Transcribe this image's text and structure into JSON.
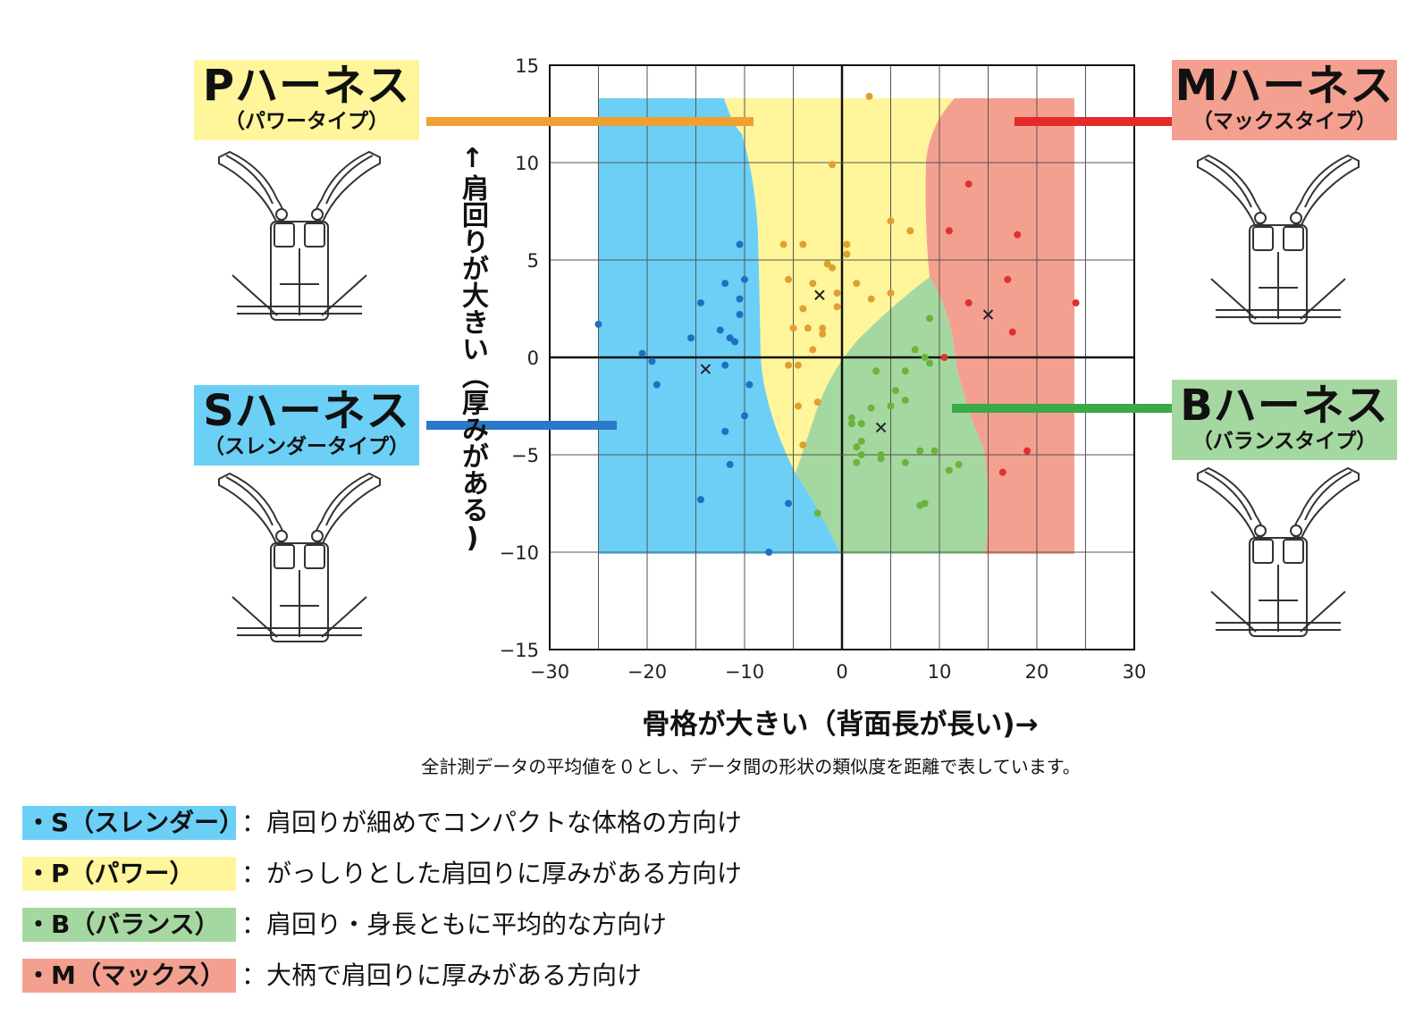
{
  "chart_data": {
    "type": "scatter",
    "xlabel": "骨格が大きい（背面長が長い)→",
    "ylabel": "↑肩回りが大きい（厚みがある)",
    "note": "全計測データの平均値を０とし、データ間の形状の類似度を距離で表しています。",
    "xlim": [
      -30,
      30
    ],
    "ylim": [
      -15,
      15
    ],
    "x_ticks": [
      "−30",
      "−20",
      "−10",
      "0",
      "10",
      "20",
      "30"
    ],
    "y_ticks": [
      "15",
      "10",
      "5",
      "0",
      "−5",
      "−10",
      "−15"
    ],
    "grid": true,
    "series": [
      {
        "name": "S",
        "color": "#1f6fc2",
        "points": [
          [
            -25,
            1.7
          ],
          [
            -20.5,
            0.2
          ],
          [
            -19.5,
            -0.2
          ],
          [
            -19,
            -1.4
          ],
          [
            -15.5,
            1
          ],
          [
            -14.5,
            2.8
          ],
          [
            -12.5,
            1.4
          ],
          [
            -12,
            -3.8
          ],
          [
            -12,
            3.8
          ],
          [
            -11.5,
            1
          ],
          [
            -11,
            0.8
          ],
          [
            -10.5,
            5.8
          ],
          [
            -10.5,
            3
          ],
          [
            -10.5,
            2.2
          ],
          [
            -10,
            4
          ],
          [
            -10,
            -3
          ],
          [
            -9.5,
            -1.4
          ],
          [
            -12,
            -0.4
          ],
          [
            -11.5,
            -5.5
          ],
          [
            -14.5,
            -7.3
          ],
          [
            -5.5,
            -7.5
          ],
          [
            -7.5,
            -10
          ]
        ]
      },
      {
        "name": "P",
        "color": "#e0a030",
        "points": [
          [
            2.8,
            13.4
          ],
          [
            -1,
            9.9
          ],
          [
            -6,
            5.8
          ],
          [
            -4,
            5.8
          ],
          [
            0.5,
            5.8
          ],
          [
            0.5,
            5.3
          ],
          [
            -1.5,
            4.8
          ],
          [
            -1,
            4.6
          ],
          [
            -5.5,
            4
          ],
          [
            -3,
            3.8
          ],
          [
            -0.5,
            3.3
          ],
          [
            -0.5,
            2.6
          ],
          [
            1.5,
            3.8
          ],
          [
            -4,
            2.5
          ],
          [
            -5,
            1.5
          ],
          [
            -3.5,
            1.5
          ],
          [
            -2,
            1.5
          ],
          [
            -2,
            1.2
          ],
          [
            -3,
            0.4
          ],
          [
            -5.5,
            -0.4
          ],
          [
            -4.5,
            -0.4
          ],
          [
            -4.5,
            -2.5
          ],
          [
            -2.5,
            -2.3
          ],
          [
            -4,
            -4.5
          ],
          [
            3,
            3
          ],
          [
            5,
            3.3
          ],
          [
            5,
            7
          ],
          [
            7,
            6.5
          ]
        ]
      },
      {
        "name": "B",
        "color": "#6ab43c",
        "points": [
          [
            9,
            2
          ],
          [
            7.5,
            0.4
          ],
          [
            8.5,
            0
          ],
          [
            9,
            -0.3
          ],
          [
            3.5,
            -0.7
          ],
          [
            6.5,
            -0.7
          ],
          [
            5.5,
            -1.7
          ],
          [
            6.5,
            -2.2
          ],
          [
            5,
            -2.5
          ],
          [
            3,
            -2.6
          ],
          [
            1,
            -3.1
          ],
          [
            1,
            -3.4
          ],
          [
            2,
            -3.4
          ],
          [
            2,
            -4.3
          ],
          [
            1.5,
            -4.6
          ],
          [
            2,
            -5
          ],
          [
            4,
            -5
          ],
          [
            4,
            -5.2
          ],
          [
            1.5,
            -5.4
          ],
          [
            6.5,
            -5.4
          ],
          [
            8,
            -4.8
          ],
          [
            9.5,
            -4.8
          ],
          [
            11,
            -5.8
          ],
          [
            12,
            -5.5
          ],
          [
            8,
            -7.6
          ],
          [
            8.5,
            -7.5
          ],
          [
            -2.5,
            -8
          ]
        ]
      },
      {
        "name": "M",
        "color": "#e03030",
        "points": [
          [
            13,
            8.9
          ],
          [
            11,
            6.5
          ],
          [
            18,
            6.3
          ],
          [
            17,
            4
          ],
          [
            24,
            2.8
          ],
          [
            13,
            2.8
          ],
          [
            10.5,
            0
          ],
          [
            17.5,
            1.3
          ],
          [
            19,
            -4.8
          ],
          [
            16.5,
            -5.9
          ]
        ]
      },
      {
        "name": "center",
        "color": "#222222",
        "points": [
          [
            -14,
            -0.6
          ],
          [
            -2.3,
            3.2
          ],
          [
            4,
            -3.6
          ],
          [
            15,
            2.2
          ]
        ]
      }
    ],
    "regions": [
      {
        "name": "S",
        "color": "#6ccff6",
        "label": "Sハーネス",
        "sub": "（スレンダータイプ）"
      },
      {
        "name": "P",
        "color": "#fff59a",
        "label": "Pハーネス",
        "sub": "（パワータイプ）"
      },
      {
        "name": "B",
        "color": "#a5d8a0",
        "label": "Bハーネス",
        "sub": "（バランスタイプ）"
      },
      {
        "name": "M",
        "color": "#f4a090",
        "label": "Mハーネス",
        "sub": "（マックスタイプ）"
      }
    ]
  },
  "legend": [
    {
      "label": "・S（スレンダー）",
      "text": "：肩回りが細めでコンパクトな体格の方向け",
      "color": "#6ccff6"
    },
    {
      "label": "・P（パワー）",
      "text": "：がっしりとした肩回りに厚みがある方向け",
      "color": "#fff59a"
    },
    {
      "label": "・B（バランス）",
      "text": "：肩回り・身長ともに平均的な方向け",
      "color": "#a5d8a0"
    },
    {
      "label": "・M（マックス）",
      "text": "：大柄で肩回りに厚みがある方向け",
      "color": "#f4a090"
    }
  ]
}
